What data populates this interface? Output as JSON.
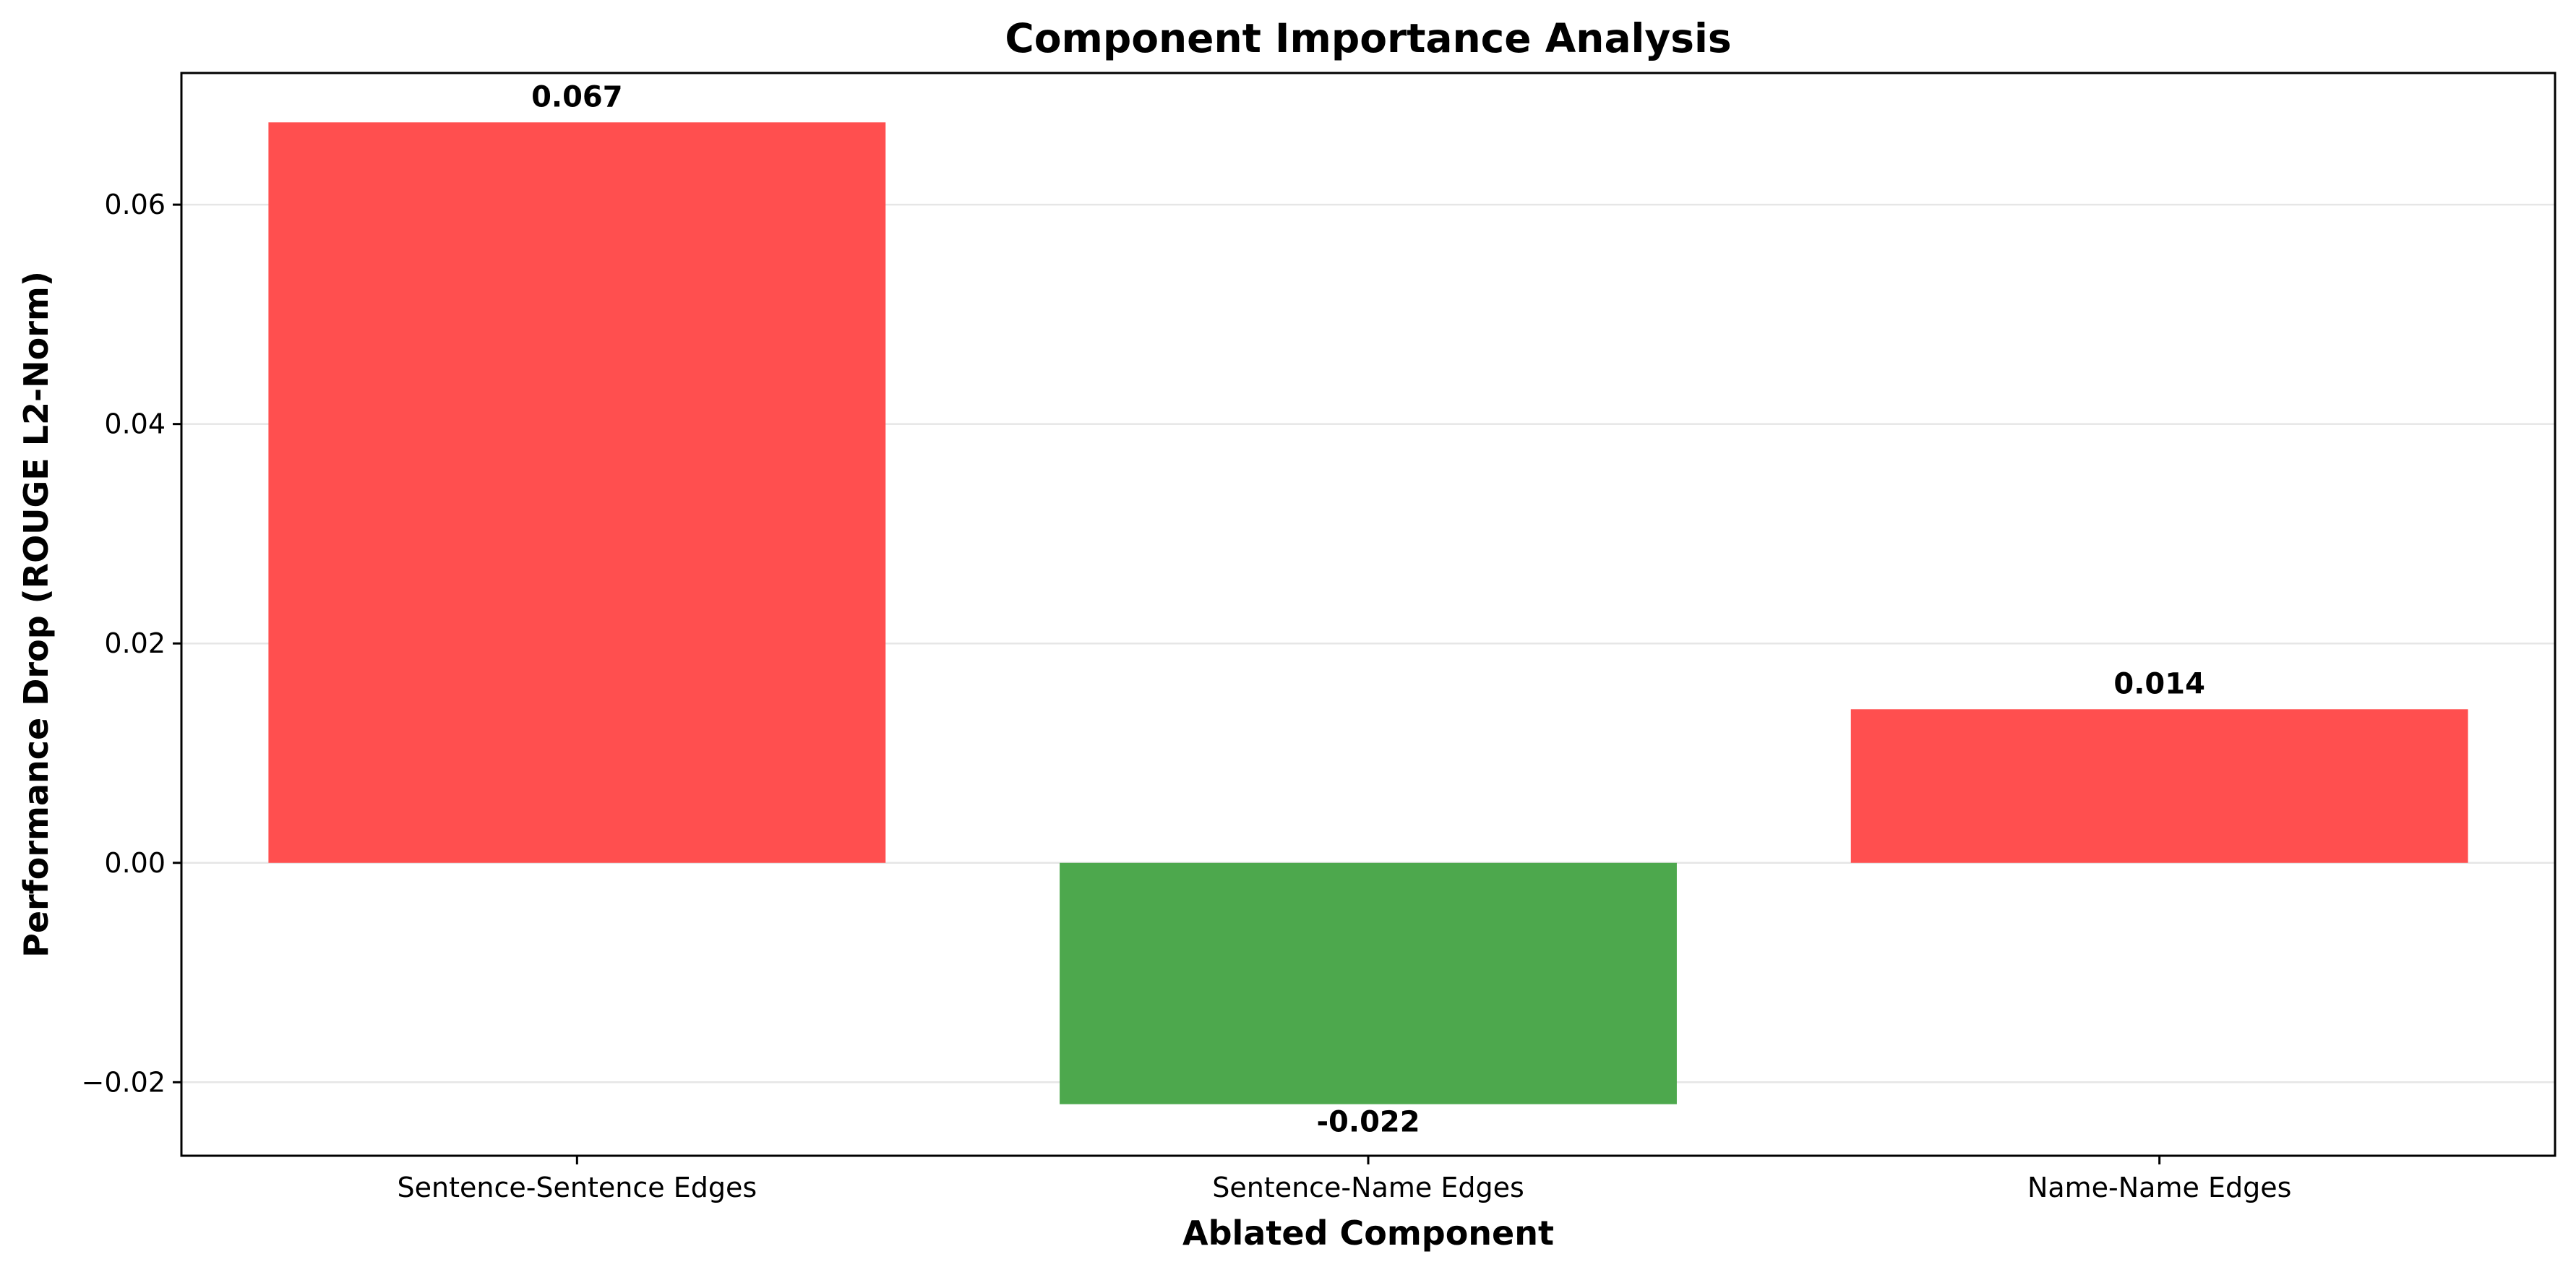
{
  "chart_data": {
    "type": "bar",
    "title": "Component Importance Analysis",
    "xlabel": "Ablated Component",
    "ylabel": "Performance Drop (ROUGE L2-Norm)",
    "categories": [
      "Sentence-Sentence Edges",
      "Sentence-Name Edges",
      "Name-Name Edges"
    ],
    "values": [
      0.0675,
      -0.022,
      0.014
    ],
    "data_labels": [
      "0.067",
      "-0.022",
      "0.014"
    ],
    "colors": [
      "#ff4f4f",
      "#4da84d",
      "#ff4f4f"
    ],
    "ylim": [
      -0.0267,
      0.072
    ],
    "yticks": [
      -0.02,
      0.0,
      0.02,
      0.04,
      0.06
    ],
    "ytick_labels": [
      "−0.02",
      "0.00",
      "0.02",
      "0.04",
      "0.06"
    ],
    "grid": true,
    "grid_axis": "y",
    "legend": false
  }
}
